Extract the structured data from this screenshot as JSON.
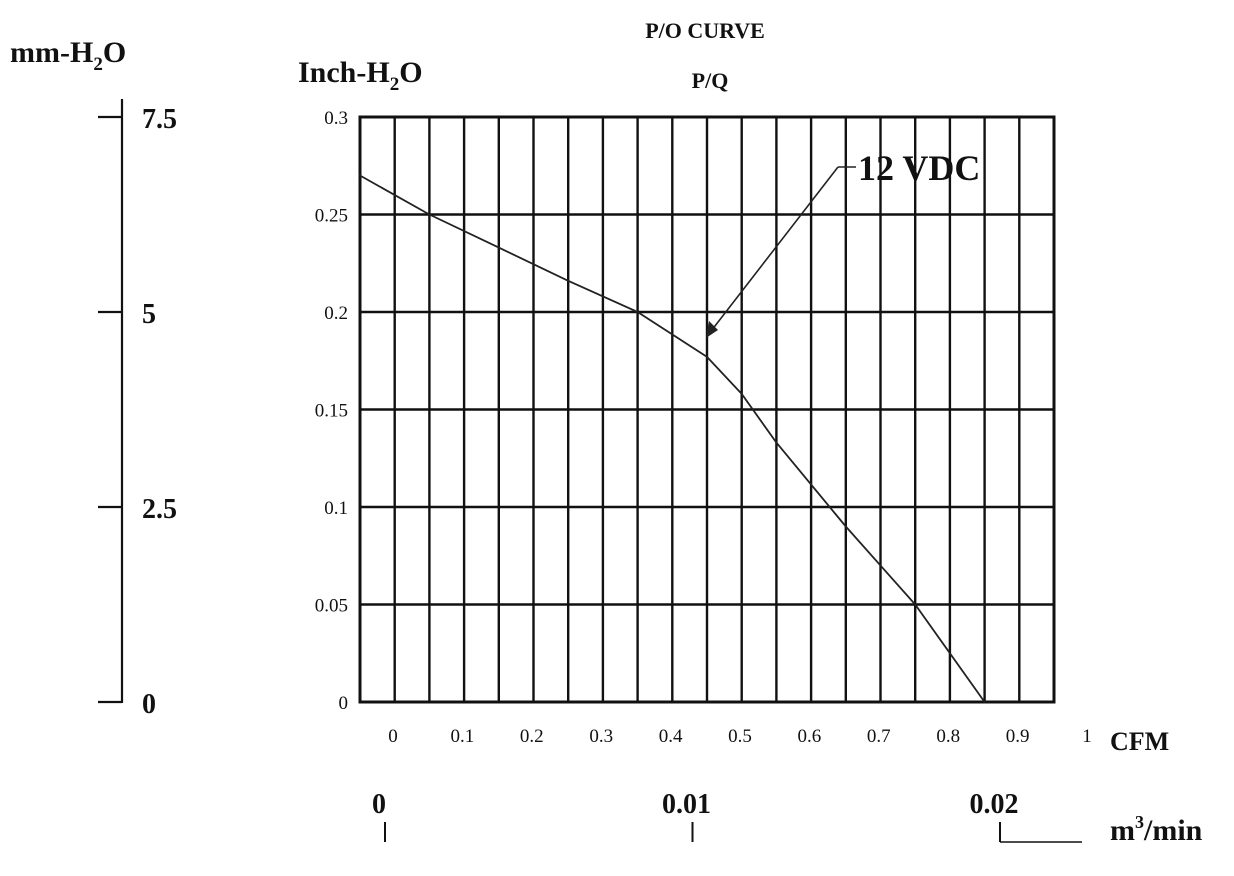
{
  "chart_data": {
    "type": "line",
    "title": "P/O CURVE",
    "subtitle": "P/Q",
    "x": [
      0,
      0.1,
      0.2,
      0.3,
      0.4,
      0.5,
      0.55,
      0.6,
      0.7,
      0.8,
      0.9
    ],
    "series": [
      {
        "name": "12 VDC",
        "values": [
          0.27,
          0.25,
          0.233,
          0.216,
          0.2,
          0.177,
          0.158,
          0.133,
          0.09,
          0.05,
          0.0
        ]
      }
    ],
    "xlim": [
      0,
      1
    ],
    "ylim": [
      0,
      0.3
    ],
    "x_ticks": [
      "0",
      "0.1",
      "0.2",
      "0.3",
      "0.4",
      "0.5",
      "0.6",
      "0.7",
      "0.8",
      "0.9",
      "1"
    ],
    "y_ticks": [
      "0",
      "0.05",
      "0.1",
      "0.15",
      "0.2",
      "0.25",
      "0.3"
    ],
    "xlabel": "CFM",
    "ylabel": "Inch-H2O",
    "secondary_y": {
      "label": "mm-H2O",
      "ticks": [
        "0",
        "2.5",
        "5",
        "7.5"
      ],
      "values": [
        0,
        2.5,
        5,
        7.5
      ]
    },
    "secondary_x": {
      "label": "m3/min",
      "ticks": [
        "0",
        "0.01",
        "0.02"
      ],
      "values": [
        0,
        0.01,
        0.02
      ]
    },
    "grid": true,
    "annotation": "12 VDC"
  }
}
